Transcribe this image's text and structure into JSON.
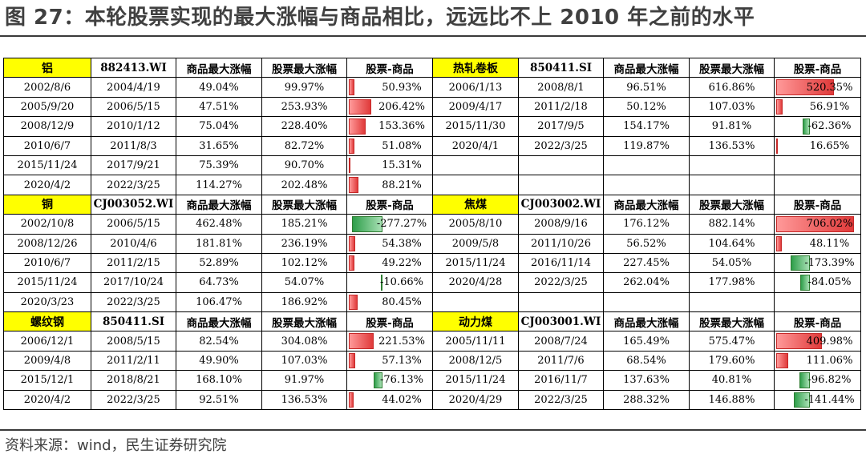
{
  "title": "图 27：本轮股票实现的最大涨幅与商品相比，远远比不上 2010 年之前的水平",
  "source": "资料来源：wind，民生证券研究院",
  "colors": {
    "name_bg": "#ffff00",
    "positive": "#e03a3a",
    "negative": "#2e9e4a"
  },
  "headers": [
    "商品最大涨幅",
    "股票最大涨幅",
    "股票-商品"
  ],
  "sections": [
    {
      "left": {
        "name": "铝",
        "code": "882413.WI",
        "rows": [
          [
            "2002/8/6",
            "2004/4/19",
            "49.04%",
            "99.97%",
            "50.93%"
          ],
          [
            "2005/9/20",
            "2006/5/15",
            "47.51%",
            "253.93%",
            "206.42%"
          ],
          [
            "2008/12/9",
            "2010/1/12",
            "75.04%",
            "228.40%",
            "153.36%"
          ],
          [
            "2010/6/7",
            "2011/8/3",
            "31.65%",
            "82.72%",
            "51.08%"
          ],
          [
            "2015/11/24",
            "2017/9/21",
            "75.39%",
            "90.70%",
            "15.31%"
          ],
          [
            "2020/4/2",
            "2022/3/25",
            "114.27%",
            "202.48%",
            "88.21%"
          ]
        ]
      },
      "right": {
        "name": "热轧卷板",
        "code": "850411.SI",
        "rows": [
          [
            "2006/1/13",
            "2008/8/1",
            "96.51%",
            "616.86%",
            "520.35%"
          ],
          [
            "2009/4/17",
            "2011/2/18",
            "50.12%",
            "107.03%",
            "56.91%"
          ],
          [
            "2015/11/30",
            "2017/9/5",
            "154.17%",
            "91.81%",
            "-62.36%"
          ],
          [
            "2020/4/1",
            "2022/3/25",
            "119.87%",
            "136.53%",
            "16.65%"
          ],
          [
            "",
            "",
            "",
            "",
            ""
          ],
          [
            "",
            "",
            "",
            "",
            ""
          ]
        ]
      }
    },
    {
      "left": {
        "name": "铜",
        "code": "CJ003052.WI",
        "rows": [
          [
            "2002/10/8",
            "2006/5/15",
            "462.48%",
            "185.21%",
            "-277.27%"
          ],
          [
            "2008/12/26",
            "2010/4/6",
            "181.81%",
            "236.19%",
            "54.38%"
          ],
          [
            "2010/6/7",
            "2011/2/15",
            "52.89%",
            "102.12%",
            "49.22%"
          ],
          [
            "2015/11/24",
            "2017/10/24",
            "64.73%",
            "54.07%",
            "-10.66%"
          ],
          [
            "2020/3/23",
            "2022/3/25",
            "106.47%",
            "186.92%",
            "80.45%"
          ]
        ]
      },
      "right": {
        "name": "焦煤",
        "code": "CJ003002.WI",
        "rows": [
          [
            "2005/8/10",
            "2008/9/16",
            "176.12%",
            "882.14%",
            "706.02%"
          ],
          [
            "2009/5/8",
            "2011/10/26",
            "56.52%",
            "104.64%",
            "48.11%"
          ],
          [
            "2015/11/24",
            "2016/11/14",
            "227.45%",
            "54.05%",
            "-173.39%"
          ],
          [
            "2020/4/28",
            "2022/3/25",
            "262.04%",
            "177.98%",
            "-84.05%"
          ],
          [
            "",
            "",
            "",
            "",
            ""
          ]
        ]
      }
    },
    {
      "left": {
        "name": "螺纹钢",
        "code": "850411.SI",
        "rows": [
          [
            "2006/12/1",
            "2008/5/15",
            "82.54%",
            "304.08%",
            "221.53%"
          ],
          [
            "2009/4/8",
            "2011/2/11",
            "49.90%",
            "107.03%",
            "57.13%"
          ],
          [
            "2015/12/1",
            "2018/8/21",
            "168.10%",
            "91.97%",
            "-76.13%"
          ],
          [
            "2020/4/2",
            "2022/3/25",
            "92.51%",
            "136.53%",
            "44.02%"
          ]
        ]
      },
      "right": {
        "name": "动力煤",
        "code": "CJ003001.WI",
        "rows": [
          [
            "2005/11/11",
            "2008/7/24",
            "165.49%",
            "575.47%",
            "409.98%"
          ],
          [
            "2008/12/5",
            "2011/7/6",
            "68.54%",
            "179.60%",
            "111.06%"
          ],
          [
            "2015/11/24",
            "2016/11/7",
            "137.63%",
            "40.81%",
            "-96.82%"
          ],
          [
            "2020/4/29",
            "2022/3/25",
            "288.32%",
            "146.88%",
            "-141.44%"
          ]
        ]
      }
    }
  ]
}
